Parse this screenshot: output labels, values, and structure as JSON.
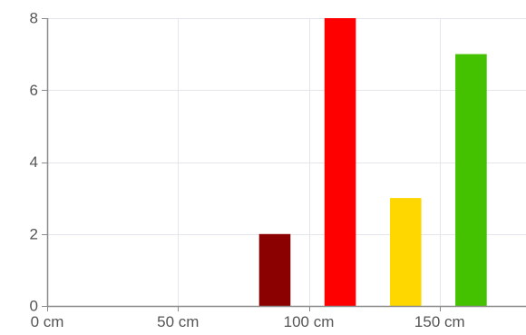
{
  "chart_data": {
    "type": "bar",
    "title": "",
    "xlabel": "",
    "ylabel": "",
    "x_unit": "cm",
    "xlim": [
      0,
      183
    ],
    "ylim": [
      0,
      8
    ],
    "x_ticks": [
      {
        "value": 0,
        "label": "0 cm"
      },
      {
        "value": 50,
        "label": "50 cm"
      },
      {
        "value": 100,
        "label": "100 cm"
      },
      {
        "value": 150,
        "label": "150 cm"
      }
    ],
    "y_ticks": [
      {
        "value": 0,
        "label": "0"
      },
      {
        "value": 2,
        "label": "2"
      },
      {
        "value": 4,
        "label": "4"
      },
      {
        "value": 6,
        "label": "6"
      },
      {
        "value": 8,
        "label": "8"
      }
    ],
    "grid": true,
    "legend": "none",
    "bars": [
      {
        "x_start": 81,
        "x_end": 93,
        "value": 2,
        "color": "#8b0000"
      },
      {
        "x_start": 106,
        "x_end": 118,
        "value": 8,
        "color": "#ff0000"
      },
      {
        "x_start": 131,
        "x_end": 143,
        "value": 3,
        "color": "#ffd700"
      },
      {
        "x_start": 156,
        "x_end": 168,
        "value": 7,
        "color": "#44c200"
      }
    ],
    "colors": {
      "grid": "#e3e6ec",
      "axis": "#8a8a8a",
      "tick_text": "#555555"
    }
  }
}
